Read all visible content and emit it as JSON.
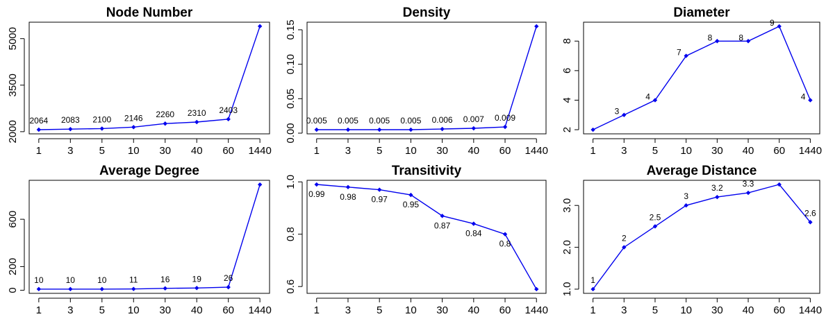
{
  "chart_data": [
    {
      "type": "line",
      "title": "Node Number",
      "categories": [
        "1",
        "3",
        "5",
        "10",
        "30",
        "40",
        "60",
        "1440"
      ],
      "values": [
        2064,
        2083,
        2100,
        2146,
        2260,
        2310,
        2403,
        5400
      ],
      "data_labels": [
        "2064",
        "2083",
        "2100",
        "2146",
        "2260",
        "2310",
        "2403",
        ""
      ],
      "label_position": "above",
      "yticks": [
        2000,
        3500,
        5000
      ],
      "ytick_labels": [
        "2000",
        "3500",
        "5000"
      ],
      "ylim": [
        1930,
        5530
      ],
      "color": "#0000EE"
    },
    {
      "type": "line",
      "title": "Density",
      "categories": [
        "1",
        "3",
        "5",
        "10",
        "30",
        "40",
        "60",
        "1440"
      ],
      "values": [
        0.005,
        0.005,
        0.005,
        0.005,
        0.006,
        0.007,
        0.009,
        0.155
      ],
      "data_labels": [
        "0.005",
        "0.005",
        "0.005",
        "0.005",
        "0.006",
        "0.007",
        "0.009",
        ""
      ],
      "label_position": "above",
      "yticks": [
        0,
        0.05,
        0.1,
        0.15
      ],
      "ytick_labels": [
        "0.00",
        "0.05",
        "0.10",
        "0.15"
      ],
      "ylim": [
        -0.001,
        0.161
      ],
      "color": "#0000EE"
    },
    {
      "type": "line",
      "title": "Diameter",
      "categories": [
        "1",
        "3",
        "5",
        "10",
        "30",
        "40",
        "60",
        "1440"
      ],
      "values": [
        2,
        3,
        4,
        7,
        8,
        8,
        9,
        4
      ],
      "data_labels": [
        "",
        "3",
        "4",
        "7",
        "8",
        "8",
        "9",
        "4"
      ],
      "label_position": "left",
      "yticks": [
        2,
        4,
        6,
        8
      ],
      "ytick_labels": [
        "2",
        "4",
        "6",
        "8"
      ],
      "ylim": [
        1.72,
        9.28
      ],
      "color": "#0000EE"
    },
    {
      "type": "line",
      "title": "Average Degree",
      "categories": [
        "1",
        "3",
        "5",
        "10",
        "30",
        "40",
        "60",
        "1440"
      ],
      "values": [
        10,
        10,
        10,
        11,
        16,
        19,
        26,
        893
      ],
      "data_labels": [
        "10",
        "10",
        "10",
        "11",
        "16",
        "19",
        "26",
        ""
      ],
      "label_position": "above",
      "yticks": [
        0,
        200,
        600
      ],
      "ytick_labels": [
        "0",
        "200",
        "600"
      ],
      "ylim": [
        -26,
        929
      ],
      "color": "#0000EE"
    },
    {
      "type": "line",
      "title": "Transitivity",
      "categories": [
        "1",
        "3",
        "5",
        "10",
        "30",
        "40",
        "60",
        "1440"
      ],
      "values": [
        0.99,
        0.98,
        0.97,
        0.95,
        0.87,
        0.84,
        0.8,
        0.59
      ],
      "data_labels": [
        "0.99",
        "0.98",
        "0.97",
        "0.95",
        "0.87",
        "0.84",
        "0.8",
        ""
      ],
      "label_position": "below",
      "yticks": [
        0.6,
        0.8,
        1.0
      ],
      "ytick_labels": [
        "0.6",
        "0.8",
        "1.0"
      ],
      "ylim": [
        0.574,
        1.006
      ],
      "color": "#0000EE"
    },
    {
      "type": "line",
      "title": "Average Distance",
      "categories": [
        "1",
        "3",
        "5",
        "10",
        "30",
        "40",
        "60",
        "1440"
      ],
      "values": [
        1,
        2,
        2.5,
        3,
        3.2,
        3.3,
        3.5,
        2.6
      ],
      "data_labels": [
        "1",
        "2",
        "2.5",
        "3",
        "3.2",
        "3.3",
        "",
        "2.6"
      ],
      "label_position": "above",
      "yticks": [
        1.0,
        2.0,
        3.0
      ],
      "ytick_labels": [
        "1.0",
        "2.0",
        "3.0"
      ],
      "ylim": [
        0.9,
        3.6
      ],
      "color": "#0000EE"
    }
  ]
}
